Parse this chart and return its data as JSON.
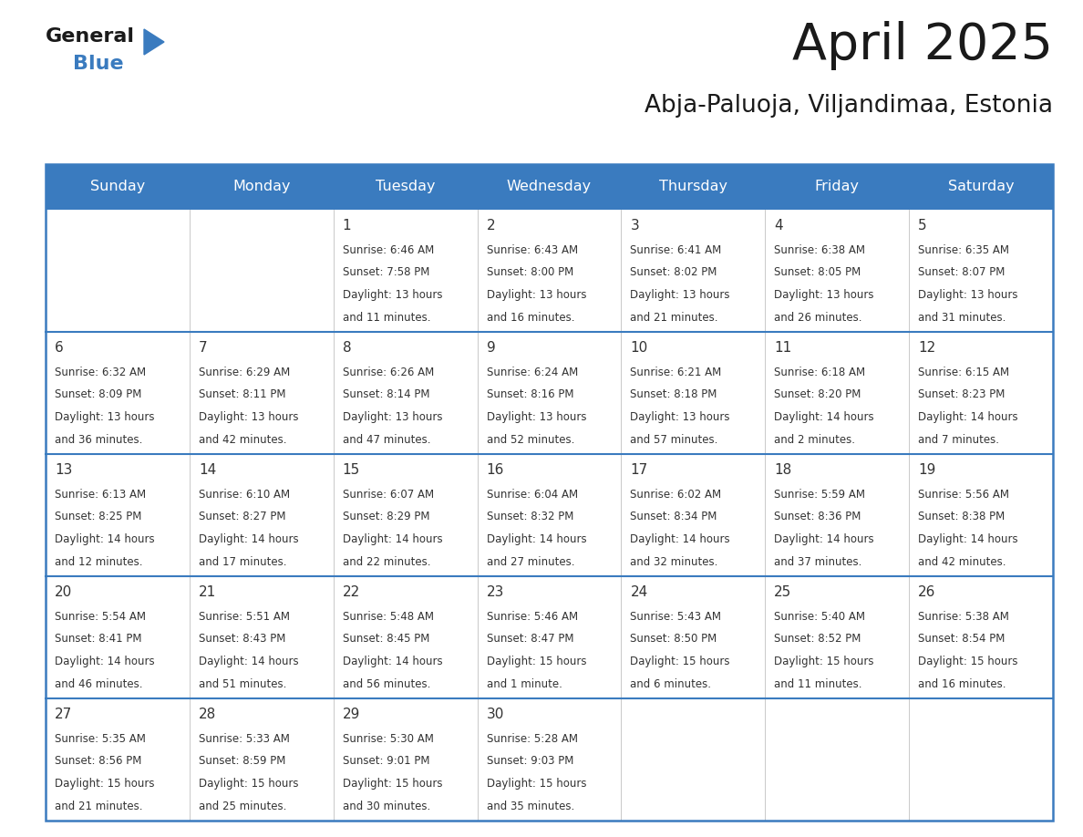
{
  "title": "April 2025",
  "subtitle": "Abja-Paluoja, Viljandimaa, Estonia",
  "header_color": "#3a7bbf",
  "header_text_color": "#ffffff",
  "border_color": "#3a7bbf",
  "row_separator_color": "#3a7bbf",
  "col_separator_color": "#c0c0c0",
  "text_color": "#333333",
  "bg_white": "#ffffff",
  "bg_gray": "#f0f4f8",
  "days_of_week": [
    "Sunday",
    "Monday",
    "Tuesday",
    "Wednesday",
    "Thursday",
    "Friday",
    "Saturday"
  ],
  "calendar": [
    [
      {
        "day": null,
        "sunrise": null,
        "sunset": null,
        "daylight": null
      },
      {
        "day": null,
        "sunrise": null,
        "sunset": null,
        "daylight": null
      },
      {
        "day": 1,
        "sunrise": "6:46 AM",
        "sunset": "7:58 PM",
        "daylight": "13 hours\nand 11 minutes."
      },
      {
        "day": 2,
        "sunrise": "6:43 AM",
        "sunset": "8:00 PM",
        "daylight": "13 hours\nand 16 minutes."
      },
      {
        "day": 3,
        "sunrise": "6:41 AM",
        "sunset": "8:02 PM",
        "daylight": "13 hours\nand 21 minutes."
      },
      {
        "day": 4,
        "sunrise": "6:38 AM",
        "sunset": "8:05 PM",
        "daylight": "13 hours\nand 26 minutes."
      },
      {
        "day": 5,
        "sunrise": "6:35 AM",
        "sunset": "8:07 PM",
        "daylight": "13 hours\nand 31 minutes."
      }
    ],
    [
      {
        "day": 6,
        "sunrise": "6:32 AM",
        "sunset": "8:09 PM",
        "daylight": "13 hours\nand 36 minutes."
      },
      {
        "day": 7,
        "sunrise": "6:29 AM",
        "sunset": "8:11 PM",
        "daylight": "13 hours\nand 42 minutes."
      },
      {
        "day": 8,
        "sunrise": "6:26 AM",
        "sunset": "8:14 PM",
        "daylight": "13 hours\nand 47 minutes."
      },
      {
        "day": 9,
        "sunrise": "6:24 AM",
        "sunset": "8:16 PM",
        "daylight": "13 hours\nand 52 minutes."
      },
      {
        "day": 10,
        "sunrise": "6:21 AM",
        "sunset": "8:18 PM",
        "daylight": "13 hours\nand 57 minutes."
      },
      {
        "day": 11,
        "sunrise": "6:18 AM",
        "sunset": "8:20 PM",
        "daylight": "14 hours\nand 2 minutes."
      },
      {
        "day": 12,
        "sunrise": "6:15 AM",
        "sunset": "8:23 PM",
        "daylight": "14 hours\nand 7 minutes."
      }
    ],
    [
      {
        "day": 13,
        "sunrise": "6:13 AM",
        "sunset": "8:25 PM",
        "daylight": "14 hours\nand 12 minutes."
      },
      {
        "day": 14,
        "sunrise": "6:10 AM",
        "sunset": "8:27 PM",
        "daylight": "14 hours\nand 17 minutes."
      },
      {
        "day": 15,
        "sunrise": "6:07 AM",
        "sunset": "8:29 PM",
        "daylight": "14 hours\nand 22 minutes."
      },
      {
        "day": 16,
        "sunrise": "6:04 AM",
        "sunset": "8:32 PM",
        "daylight": "14 hours\nand 27 minutes."
      },
      {
        "day": 17,
        "sunrise": "6:02 AM",
        "sunset": "8:34 PM",
        "daylight": "14 hours\nand 32 minutes."
      },
      {
        "day": 18,
        "sunrise": "5:59 AM",
        "sunset": "8:36 PM",
        "daylight": "14 hours\nand 37 minutes."
      },
      {
        "day": 19,
        "sunrise": "5:56 AM",
        "sunset": "8:38 PM",
        "daylight": "14 hours\nand 42 minutes."
      }
    ],
    [
      {
        "day": 20,
        "sunrise": "5:54 AM",
        "sunset": "8:41 PM",
        "daylight": "14 hours\nand 46 minutes."
      },
      {
        "day": 21,
        "sunrise": "5:51 AM",
        "sunset": "8:43 PM",
        "daylight": "14 hours\nand 51 minutes."
      },
      {
        "day": 22,
        "sunrise": "5:48 AM",
        "sunset": "8:45 PM",
        "daylight": "14 hours\nand 56 minutes."
      },
      {
        "day": 23,
        "sunrise": "5:46 AM",
        "sunset": "8:47 PM",
        "daylight": "15 hours\nand 1 minute."
      },
      {
        "day": 24,
        "sunrise": "5:43 AM",
        "sunset": "8:50 PM",
        "daylight": "15 hours\nand 6 minutes."
      },
      {
        "day": 25,
        "sunrise": "5:40 AM",
        "sunset": "8:52 PM",
        "daylight": "15 hours\nand 11 minutes."
      },
      {
        "day": 26,
        "sunrise": "5:38 AM",
        "sunset": "8:54 PM",
        "daylight": "15 hours\nand 16 minutes."
      }
    ],
    [
      {
        "day": 27,
        "sunrise": "5:35 AM",
        "sunset": "8:56 PM",
        "daylight": "15 hours\nand 21 minutes."
      },
      {
        "day": 28,
        "sunrise": "5:33 AM",
        "sunset": "8:59 PM",
        "daylight": "15 hours\nand 25 minutes."
      },
      {
        "day": 29,
        "sunrise": "5:30 AM",
        "sunset": "9:01 PM",
        "daylight": "15 hours\nand 30 minutes."
      },
      {
        "day": 30,
        "sunrise": "5:28 AM",
        "sunset": "9:03 PM",
        "daylight": "15 hours\nand 35 minutes."
      },
      {
        "day": null,
        "sunrise": null,
        "sunset": null,
        "daylight": null
      },
      {
        "day": null,
        "sunrise": null,
        "sunset": null,
        "daylight": null
      },
      {
        "day": null,
        "sunrise": null,
        "sunset": null,
        "daylight": null
      }
    ]
  ],
  "logo_general_color": "#1a1a1a",
  "logo_blue_color": "#3a7bbf",
  "title_fontsize": 40,
  "subtitle_fontsize": 19,
  "header_fontsize": 11.5,
  "day_num_fontsize": 11,
  "cell_text_fontsize": 8.5
}
